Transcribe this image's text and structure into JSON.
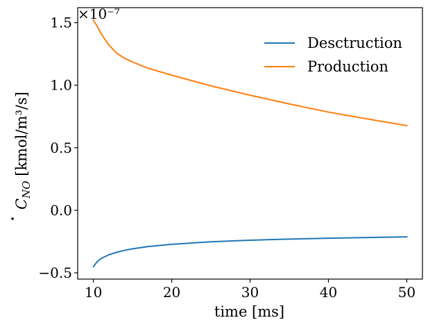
{
  "chart_data": {
    "type": "line",
    "xlabel": "time [ms]",
    "ylabel": {
      "symbol": "C",
      "subscript": "NO",
      "unit": " [kmol/m³/s]"
    },
    "offset_text": "×10⁻⁷",
    "xlim": [
      8,
      52
    ],
    "ylim": [
      -0.55,
      1.62
    ],
    "xticks": [
      10,
      20,
      30,
      40,
      50
    ],
    "xtick_labels": [
      "10",
      "20",
      "30",
      "40",
      "50"
    ],
    "yticks": [
      -0.5,
      0.0,
      0.5,
      1.0,
      1.5
    ],
    "ytick_labels": [
      "−0.5",
      "0.0",
      "0.5",
      "1.0",
      "1.5"
    ],
    "grid": false,
    "legend_position": "top-right",
    "series": [
      {
        "name": "Desctruction",
        "color": "#1f77b4",
        "x": [
          10,
          10.5,
          11,
          12,
          13,
          14,
          15,
          17,
          20,
          25,
          30,
          35,
          40,
          45,
          50
        ],
        "y": [
          -0.45,
          -0.41,
          -0.385,
          -0.355,
          -0.335,
          -0.32,
          -0.308,
          -0.29,
          -0.272,
          -0.252,
          -0.239,
          -0.23,
          -0.223,
          -0.218,
          -0.212
        ]
      },
      {
        "name": "Production",
        "color": "#ff7f0e",
        "x": [
          10,
          10.5,
          11,
          12,
          13,
          14,
          15,
          17,
          20,
          25,
          30,
          35,
          40,
          45,
          50
        ],
        "y": [
          1.52,
          1.47,
          1.41,
          1.32,
          1.255,
          1.215,
          1.185,
          1.135,
          1.08,
          0.995,
          0.92,
          0.85,
          0.785,
          0.73,
          0.677
        ]
      }
    ]
  }
}
